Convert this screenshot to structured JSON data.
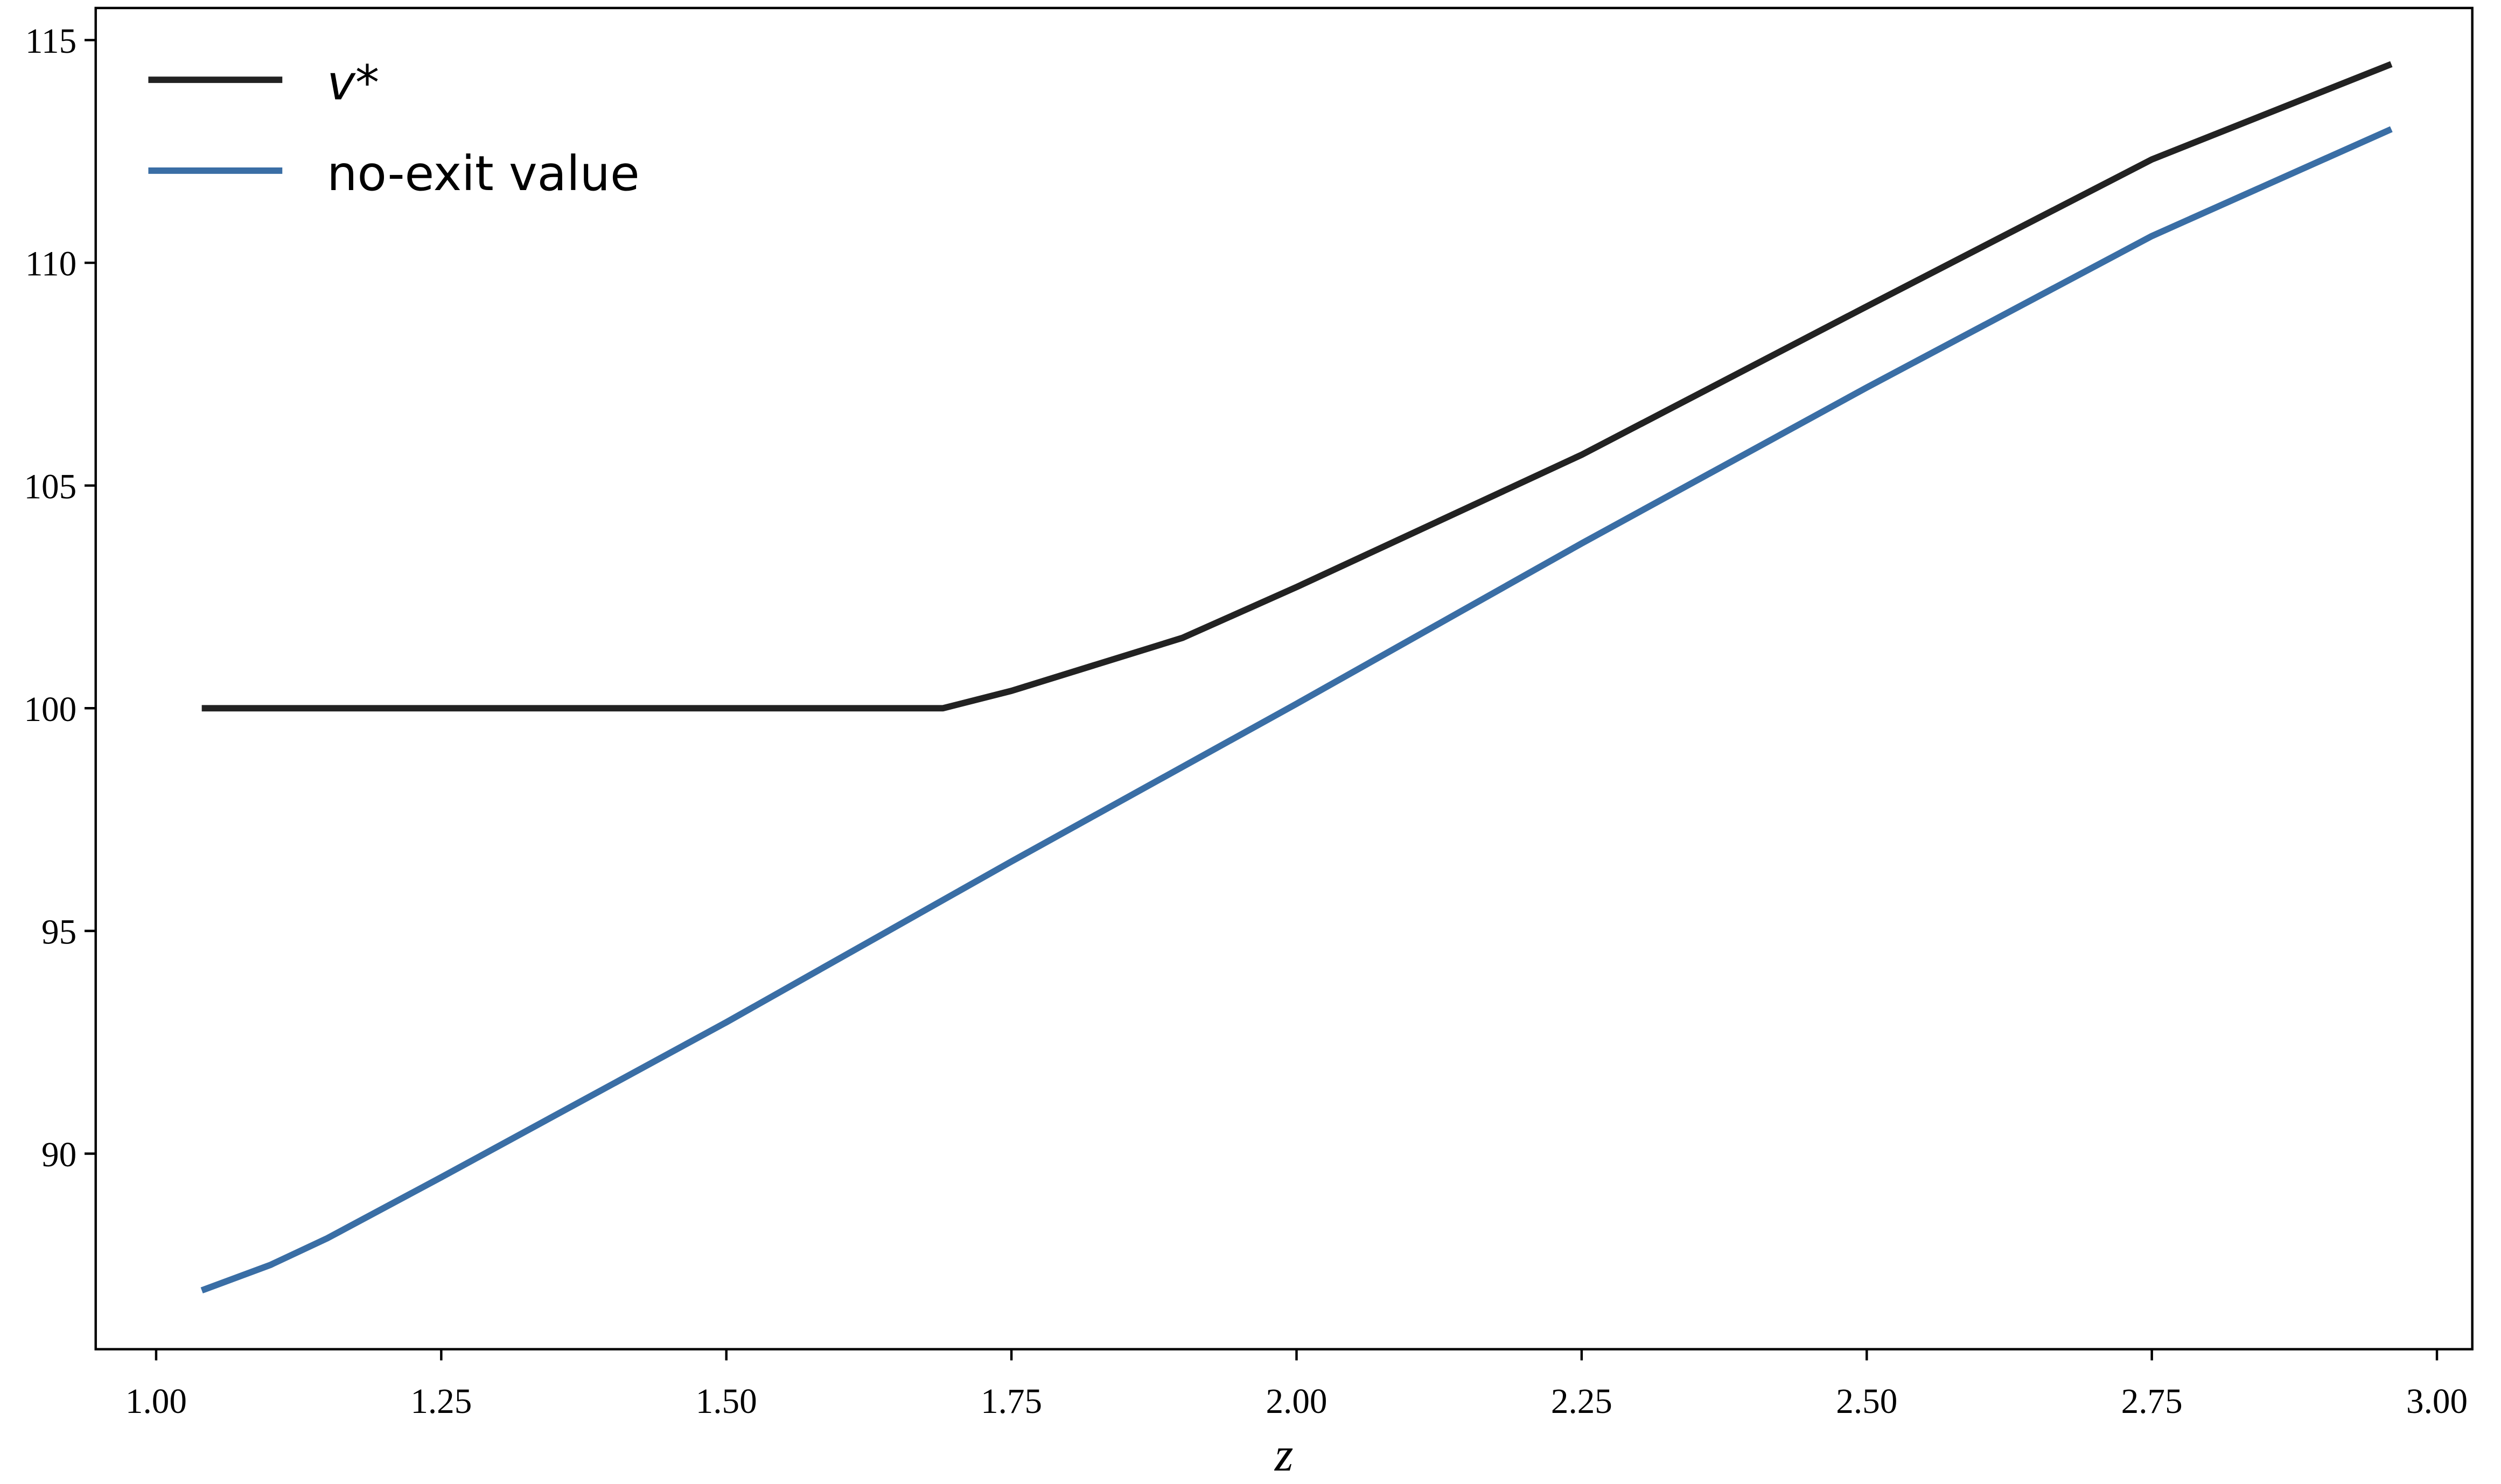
{
  "chart_data": {
    "type": "line",
    "x_label": "z",
    "series": [
      {
        "name": "v*",
        "color": "#222222",
        "x": [
          1.04,
          1.69,
          1.75,
          1.9,
          2.0,
          2.25,
          2.5,
          2.75,
          2.96
        ],
        "values": [
          100,
          100,
          100.39,
          101.58,
          102.72,
          105.69,
          109.02,
          112.32,
          114.46
        ]
      },
      {
        "name": "no-exit value",
        "color": "#3a6ea5",
        "x": [
          1.04,
          1.1,
          1.15,
          1.25,
          1.5,
          1.75,
          2.0,
          2.25,
          2.5,
          2.75,
          2.96
        ],
        "values": [
          86.93,
          87.5,
          88.1,
          89.47,
          92.95,
          96.56,
          100.1,
          103.7,
          107.2,
          110.6,
          113.0
        ]
      }
    ],
    "xlim": [
      0.947,
      3.031
    ],
    "xticks": [
      {
        "value": 1,
        "label": "1.00"
      },
      {
        "value": 1.25,
        "label": "1.25"
      },
      {
        "value": 1.5,
        "label": "1.50"
      },
      {
        "value": 1.75,
        "label": "1.75"
      },
      {
        "value": 2,
        "label": "2.00"
      },
      {
        "value": 2.25,
        "label": "2.25"
      },
      {
        "value": 2.5,
        "label": "2.50"
      },
      {
        "value": 2.75,
        "label": "2.75"
      },
      {
        "value": 3,
        "label": "3.00"
      }
    ],
    "ylim": [
      85.61,
      115.72
    ],
    "yticks": [
      90,
      95,
      100,
      105,
      110,
      115
    ],
    "grid": false,
    "legend": "upper left"
  }
}
